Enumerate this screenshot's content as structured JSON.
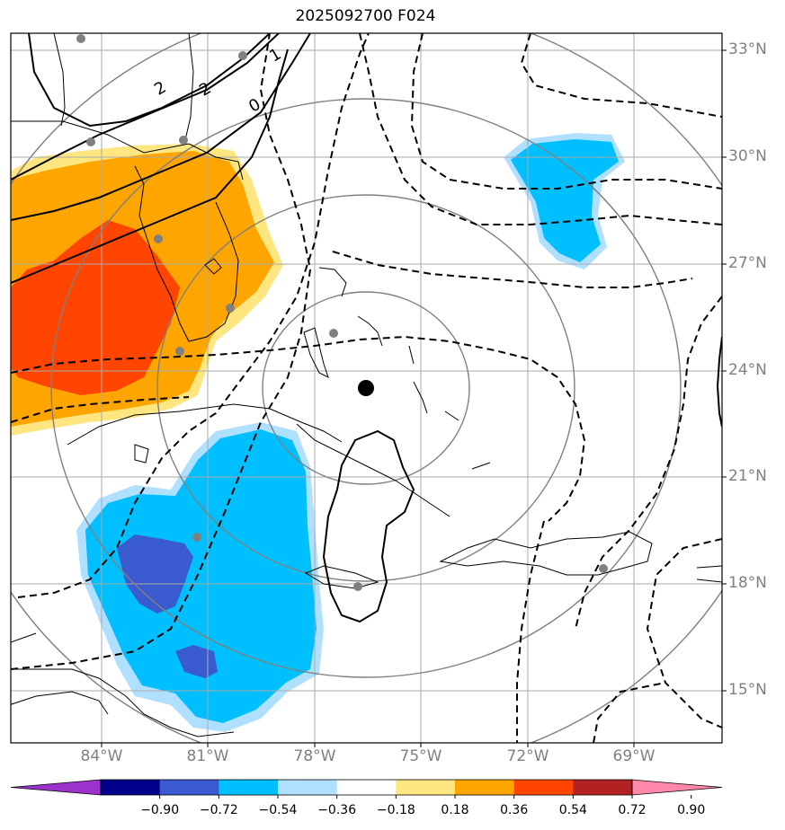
{
  "title": "2025092700 F024",
  "lat_labels": [
    "33°N",
    "30°N",
    "27°N",
    "24°N",
    "21°N",
    "18°N",
    "15°N"
  ],
  "lon_labels": [
    "84°W",
    "81°W",
    "78°W",
    "75°W",
    "72°W",
    "69°W"
  ],
  "contour_labels": [
    "2",
    "2",
    "1",
    "0"
  ],
  "colorbar": {
    "ticks": [
      "−0.90",
      "−0.72",
      "−0.54",
      "−0.36",
      "−0.18",
      "0.18",
      "0.36",
      "0.54",
      "0.72",
      "0.90"
    ],
    "colors": [
      "#9933cc",
      "#00008b",
      "#3a5bd0",
      "#00bfff",
      "#b0e0ff",
      "#ffffff",
      "#ffe680",
      "#ffa500",
      "#ff4500",
      "#b22222",
      "#ff88aa"
    ]
  }
}
